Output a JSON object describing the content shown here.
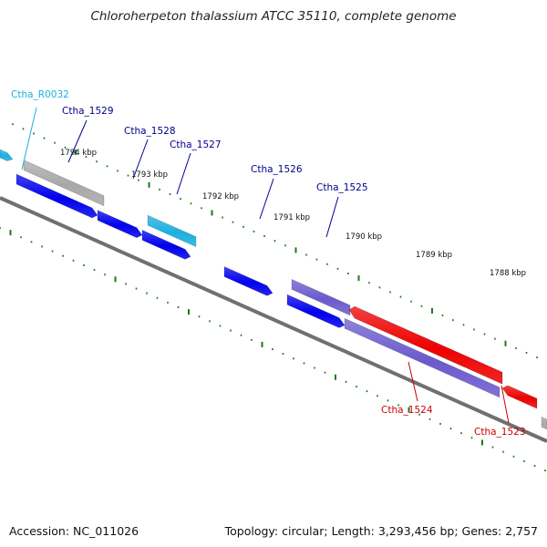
{
  "title": "Chloroherpeton thalassium ATCC 35110, complete genome",
  "footer": {
    "accession": "Accession: NC_011026",
    "summary": "Topology: circular; Length: 3,293,456 bp; Genes: 2,757"
  },
  "colors": {
    "backbone": "#707070",
    "tick": "#1a7a1a",
    "strand_blue": "#0000ee",
    "strand_red": "#ee0000",
    "strand_purple": "#6a5acd",
    "strand_cyan": "#1ab0e0",
    "strand_gray": "#a8a8a8"
  },
  "position_labels": [
    "1794 kbp",
    "1793 kbp",
    "1792 kbp",
    "1791 kbp",
    "1790 kbp",
    "1789 kbp",
    "1788 kbp"
  ],
  "genes": [
    {
      "name": "Ctha_R0032",
      "color": "#1ab0e0"
    },
    {
      "name": "Ctha_1529",
      "color": "#00008b"
    },
    {
      "name": "Ctha_1528",
      "color": "#00008b"
    },
    {
      "name": "Ctha_1527",
      "color": "#00008b"
    },
    {
      "name": "Ctha_1526",
      "color": "#00008b"
    },
    {
      "name": "Ctha_1525",
      "color": "#00008b"
    },
    {
      "name": "Ctha_1524",
      "color": "#cc0000"
    },
    {
      "name": "Ctha_1523",
      "color": "#cc0000"
    }
  ]
}
